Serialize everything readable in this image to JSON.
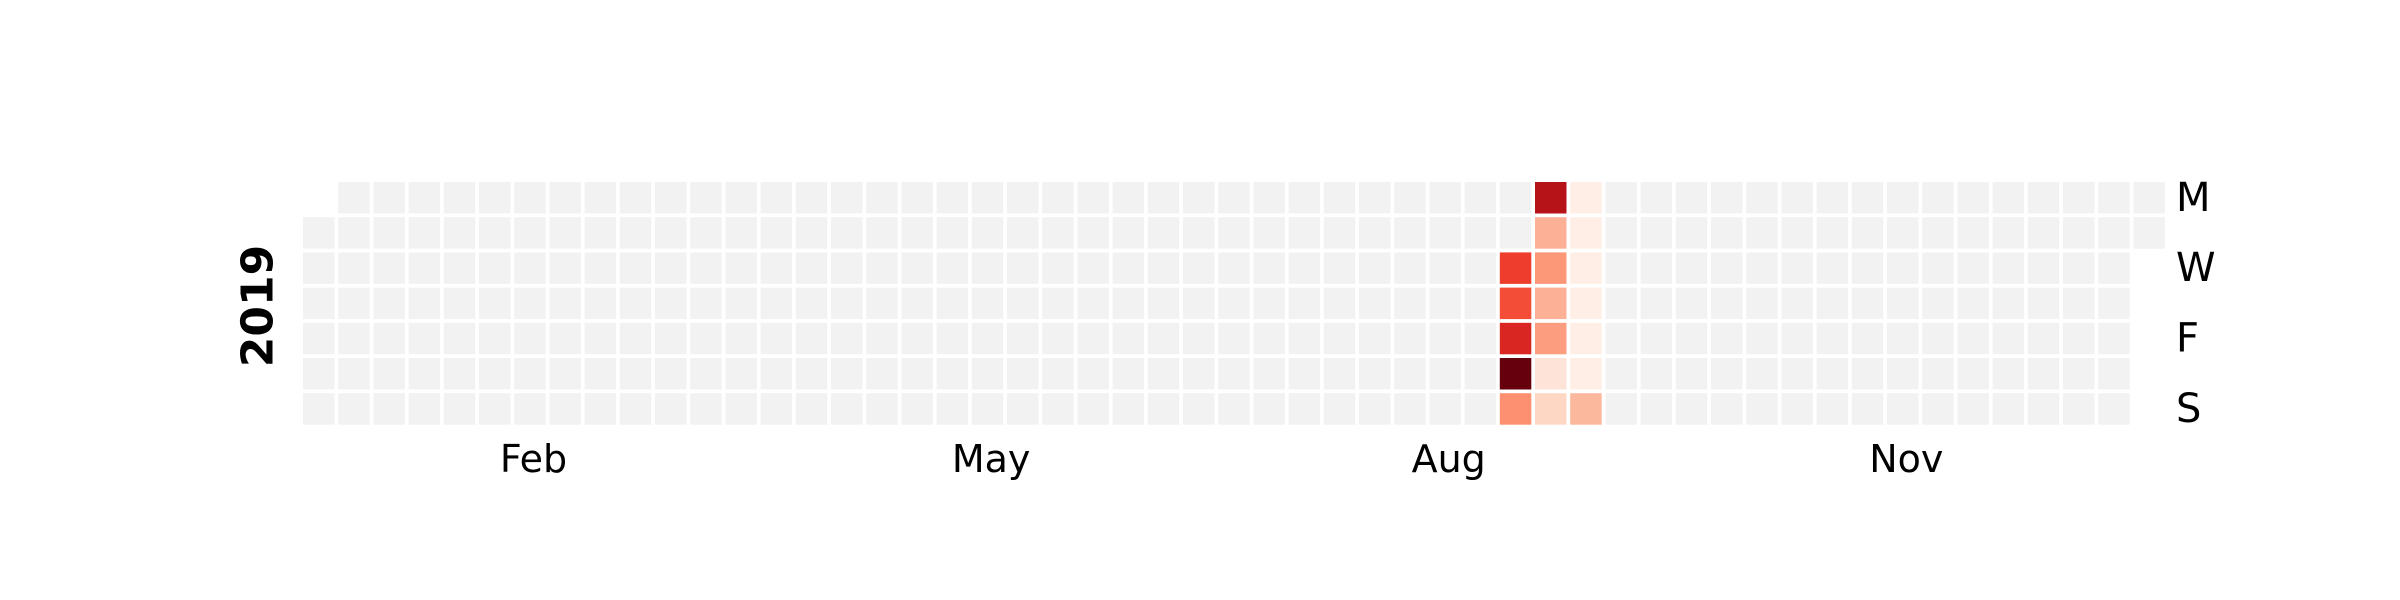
{
  "chart_data": {
    "type": "heatmap",
    "title": "",
    "year_label": "2019",
    "x_tick_labels": [
      "Feb",
      "May",
      "Aug",
      "Nov"
    ],
    "y_tick_labels": [
      "M",
      "W",
      "F",
      "S"
    ],
    "colormap": "Reds",
    "empty_color": "#f2f2f2",
    "grid_weeks": 53,
    "grid_days": 7,
    "first_day_row": 1,
    "days_in_year": 365,
    "month_start_days": {
      "Feb": 31,
      "May": 120,
      "Aug": 212,
      "Nov": 304
    },
    "value_range": [
      0,
      1
    ],
    "values": [
      {
        "week": 34,
        "day": 2,
        "value": 0.62
      },
      {
        "week": 34,
        "day": 3,
        "value": 0.58
      },
      {
        "week": 34,
        "day": 4,
        "value": 0.7
      },
      {
        "week": 34,
        "day": 5,
        "value": 1.0
      },
      {
        "week": 34,
        "day": 6,
        "value": 0.38
      },
      {
        "week": 35,
        "day": 0,
        "value": 0.82
      },
      {
        "week": 35,
        "day": 1,
        "value": 0.28
      },
      {
        "week": 35,
        "day": 2,
        "value": 0.36
      },
      {
        "week": 35,
        "day": 3,
        "value": 0.28
      },
      {
        "week": 35,
        "day": 4,
        "value": 0.34
      },
      {
        "week": 35,
        "day": 5,
        "value": 0.1
      },
      {
        "week": 35,
        "day": 6,
        "value": 0.16
      },
      {
        "week": 36,
        "day": 0,
        "value": 0.04
      },
      {
        "week": 36,
        "day": 1,
        "value": 0.04
      },
      {
        "week": 36,
        "day": 2,
        "value": 0.04
      },
      {
        "week": 36,
        "day": 3,
        "value": 0.04
      },
      {
        "week": 36,
        "day": 4,
        "value": 0.04
      },
      {
        "week": 36,
        "day": 5,
        "value": 0.04
      },
      {
        "week": 36,
        "day": 6,
        "value": 0.26
      }
    ]
  }
}
